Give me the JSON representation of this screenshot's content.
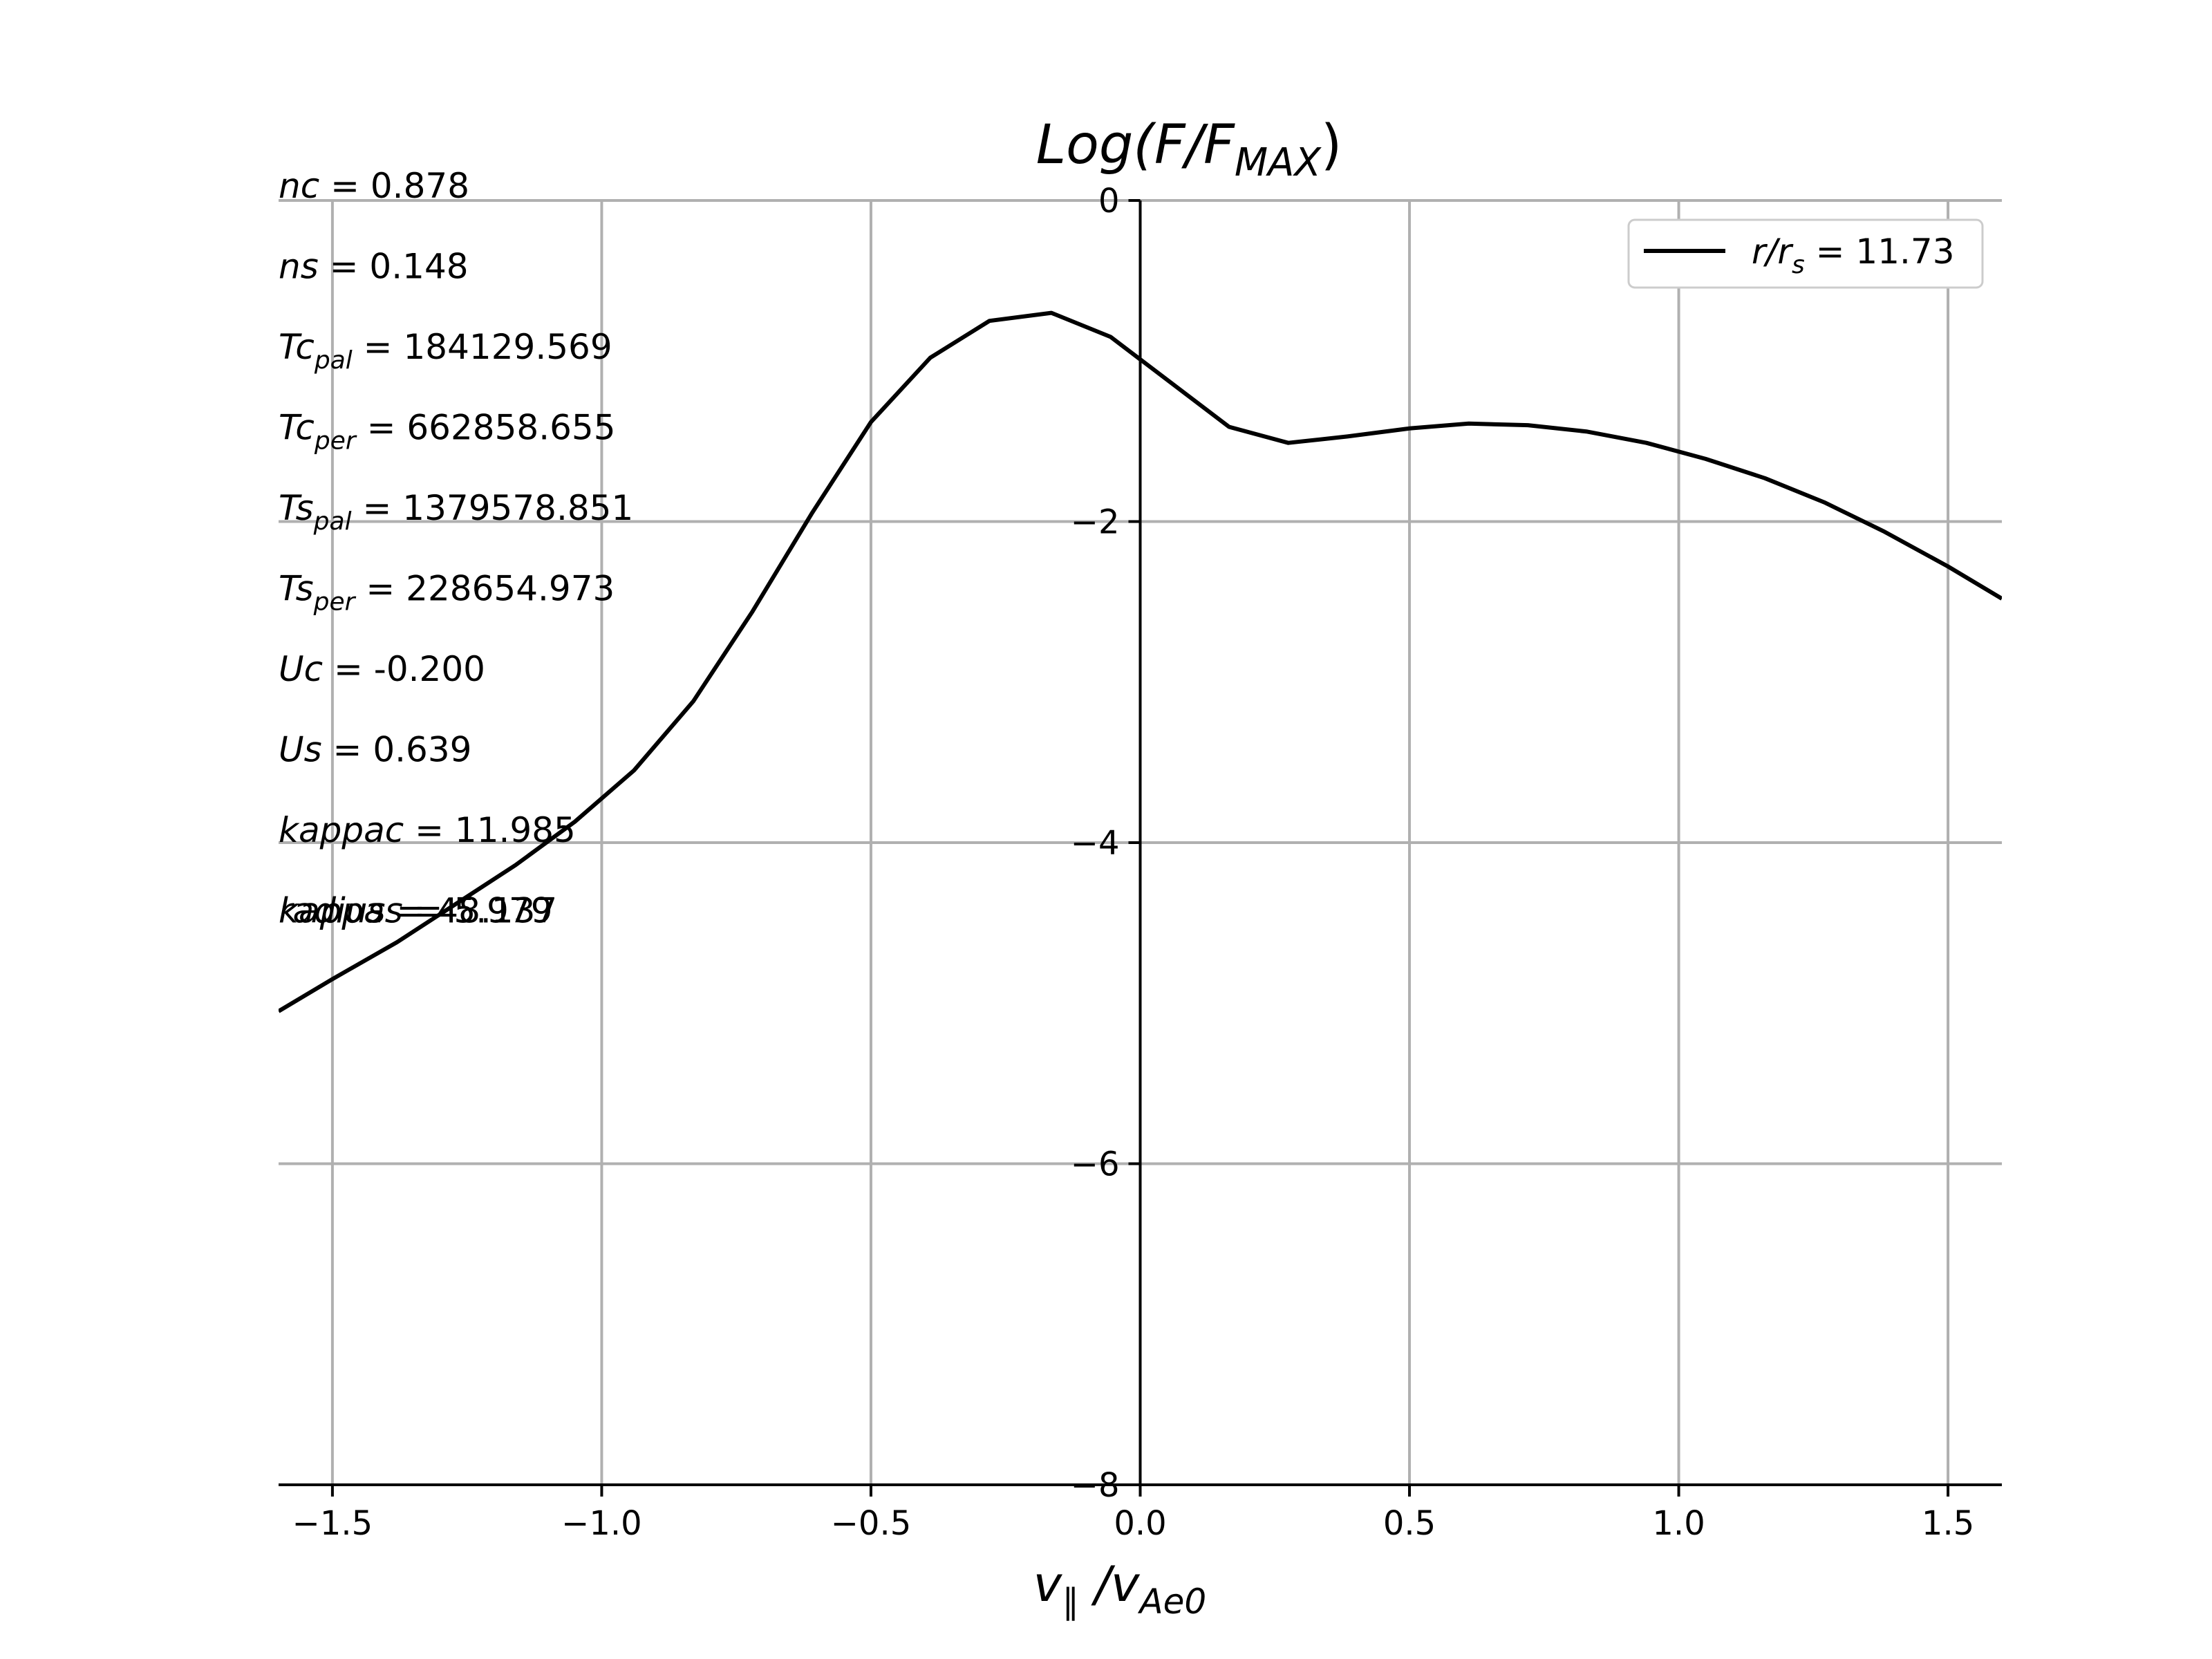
{
  "chart_data": {
    "type": "line",
    "title": {
      "pre": "Log(F/F",
      "sub": "MAX",
      "post": ")"
    },
    "xlabel": {
      "main": "v",
      "sub1": "∥",
      "mid": " /v",
      "sub2": "Ae0"
    },
    "xlim": [
      -1.6,
      1.6
    ],
    "ylim": [
      -8,
      0
    ],
    "xticks": [
      -1.5,
      -1.0,
      -0.5,
      0.0,
      0.5,
      1.0,
      1.5
    ],
    "xtick_labels": [
      "−1.5",
      "−1.0",
      "−0.5",
      "0.0",
      "0.5",
      "1.0",
      "1.5"
    ],
    "yticks": [
      0,
      -2,
      -4,
      -6,
      -8
    ],
    "ytick_labels": [
      "0",
      "−2",
      "−4",
      "−6",
      "−8"
    ],
    "grid": true,
    "legend_position": "top-right",
    "line_color": "#000000",
    "series": [
      {
        "name": {
          "pre": "r/r",
          "sub": "s",
          "post": " = 11.73"
        },
        "x": [
          -1.6,
          -1.5,
          -1.38,
          -1.27,
          -1.16,
          -1.05,
          -0.94,
          -0.83,
          -0.72,
          -0.61,
          -0.5,
          -0.39,
          -0.28,
          -0.165,
          -0.055,
          0.055,
          0.165,
          0.275,
          0.385,
          0.5,
          0.61,
          0.72,
          0.83,
          0.94,
          1.05,
          1.16,
          1.27,
          1.38,
          1.5,
          1.6
        ],
        "y": [
          -5.05,
          -4.85,
          -4.62,
          -4.38,
          -4.14,
          -3.87,
          -3.55,
          -3.12,
          -2.56,
          -1.95,
          -1.38,
          -0.98,
          -0.75,
          -0.7,
          -0.85,
          -1.13,
          -1.41,
          -1.51,
          -1.47,
          -1.42,
          -1.39,
          -1.4,
          -1.44,
          -1.51,
          -1.61,
          -1.73,
          -1.88,
          -2.06,
          -2.28,
          -2.48
        ]
      }
    ],
    "annotations": [
      {
        "label": "nc",
        "sub": "",
        "value": "= 0.878"
      },
      {
        "label": "ns",
        "sub": "",
        "value": "= 0.148"
      },
      {
        "label": "Tc",
        "sub": "pal",
        "value": "= 184129.569"
      },
      {
        "label": "Tc",
        "sub": "per",
        "value": "= 662858.655"
      },
      {
        "label": "Ts",
        "sub": "pal",
        "value": "= 1379578.851"
      },
      {
        "label": "Ts",
        "sub": "per",
        "value": "= 228654.973"
      },
      {
        "label": "Uc",
        "sub": "",
        "value": "= -0.200"
      },
      {
        "label": "Us",
        "sub": "",
        "value": "= 0.639"
      },
      {
        "label": "kappac",
        "sub": "",
        "value": "= 11.985"
      },
      {
        "label": "kappas",
        "sub": "",
        "value": "= 5.979"
      },
      {
        "label": "radius",
        "sub": "",
        "value": "= 48.137"
      }
    ]
  }
}
